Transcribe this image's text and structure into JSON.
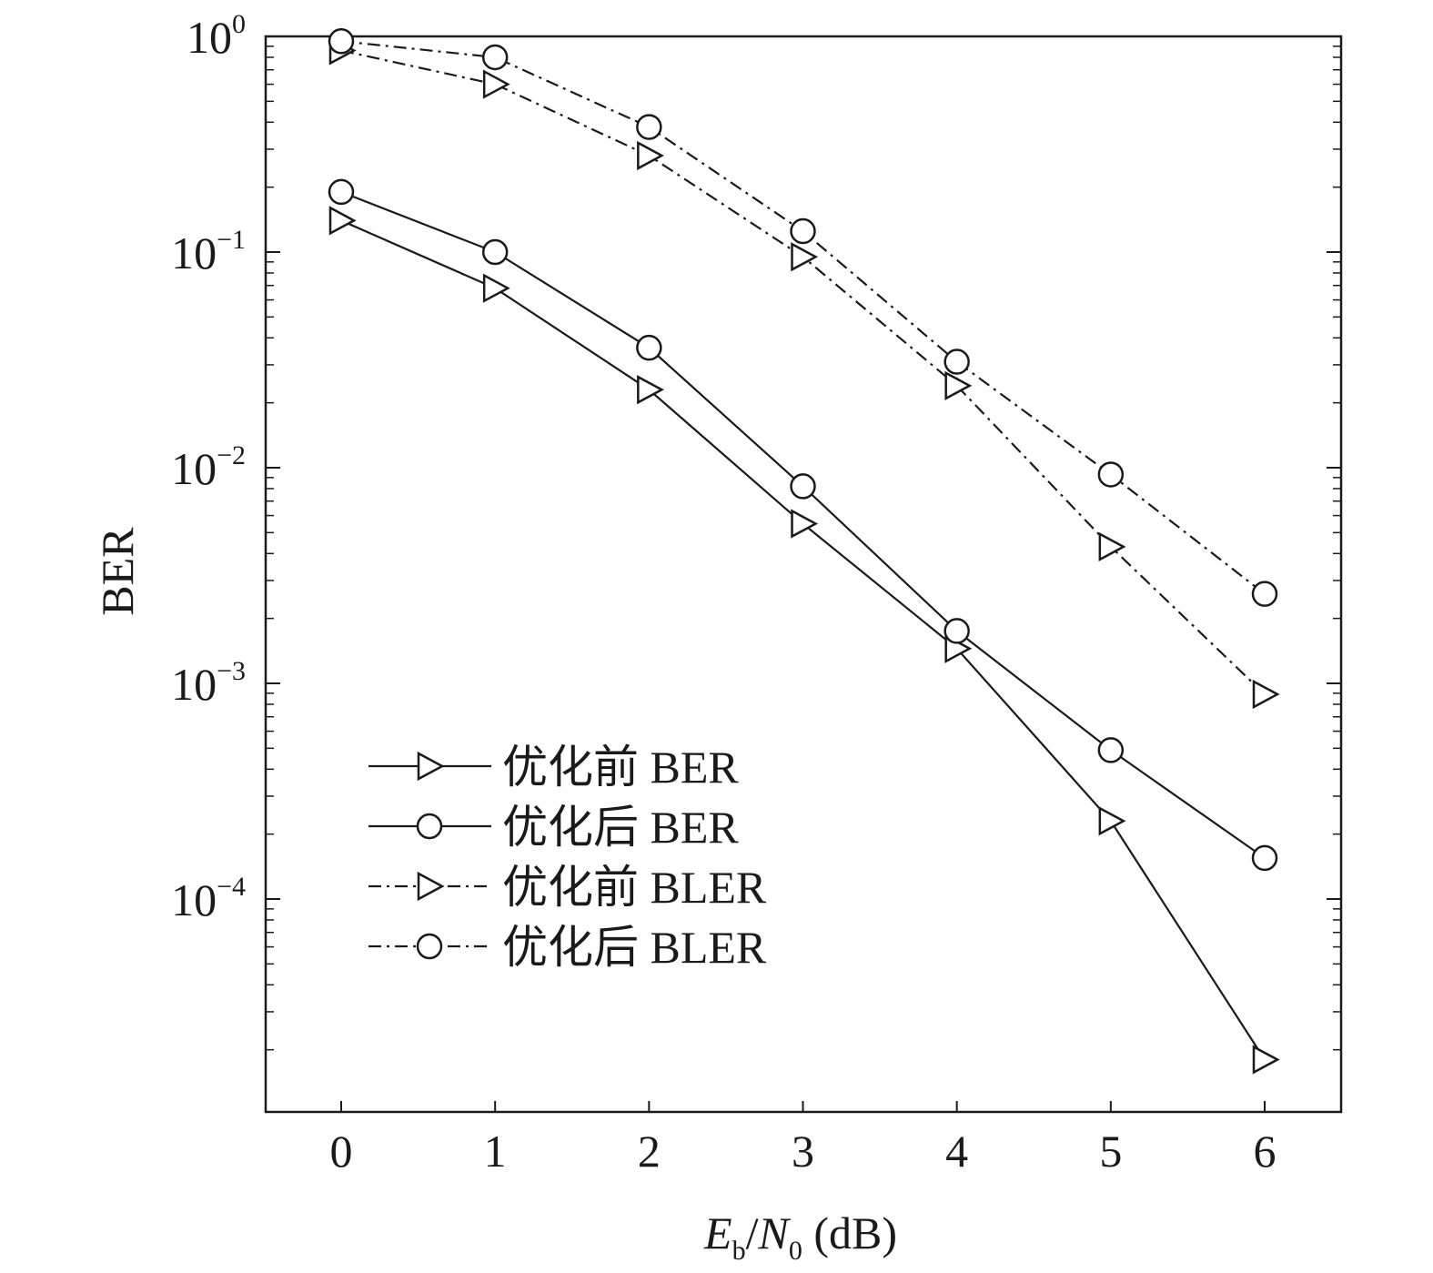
{
  "chart_data": {
    "type": "line",
    "title": "",
    "xlabel": {
      "main": "E",
      "sub1": "b",
      "slash": "/",
      "main2": "N",
      "sub2": "0",
      "unit": " (dB)"
    },
    "ylabel": "BER",
    "y_scale": "log",
    "xlim": [
      -0.5,
      6.5
    ],
    "ylim": [
      1.2e-05,
      1.0
    ],
    "x_ticks": [
      "0",
      "1",
      "2",
      "3",
      "4",
      "5",
      "6"
    ],
    "y_ticks": [
      {
        "base": "10",
        "exp": "0"
      },
      {
        "base": "10",
        "exp": "−1"
      },
      {
        "base": "10",
        "exp": "−2"
      },
      {
        "base": "10",
        "exp": "−3"
      },
      {
        "base": "10",
        "exp": "−4"
      }
    ],
    "x": [
      0,
      1,
      2,
      3,
      4,
      5,
      6
    ],
    "legend_position": "lower-left",
    "series": [
      {
        "name": "优化前 BER",
        "marker": "triangle-right",
        "line": "solid",
        "values": [
          0.14,
          0.068,
          0.023,
          0.0055,
          0.00145,
          0.00023,
          1.8e-05
        ]
      },
      {
        "name": "优化后 BER",
        "marker": "circle",
        "line": "solid",
        "values": [
          0.19,
          0.1,
          0.036,
          0.0082,
          0.00175,
          0.00049,
          0.000155
        ]
      },
      {
        "name": "优化前 BLER",
        "marker": "triangle-right",
        "line": "dashdot",
        "values": [
          0.86,
          0.6,
          0.28,
          0.095,
          0.024,
          0.0043,
          0.00089
        ]
      },
      {
        "name": "优化后 BLER",
        "marker": "circle",
        "line": "dashdot",
        "values": [
          0.95,
          0.8,
          0.38,
          0.125,
          0.031,
          0.0093,
          0.0026
        ]
      }
    ],
    "colors": {
      "line": "#1a1a1a",
      "background": "#ffffff"
    }
  }
}
